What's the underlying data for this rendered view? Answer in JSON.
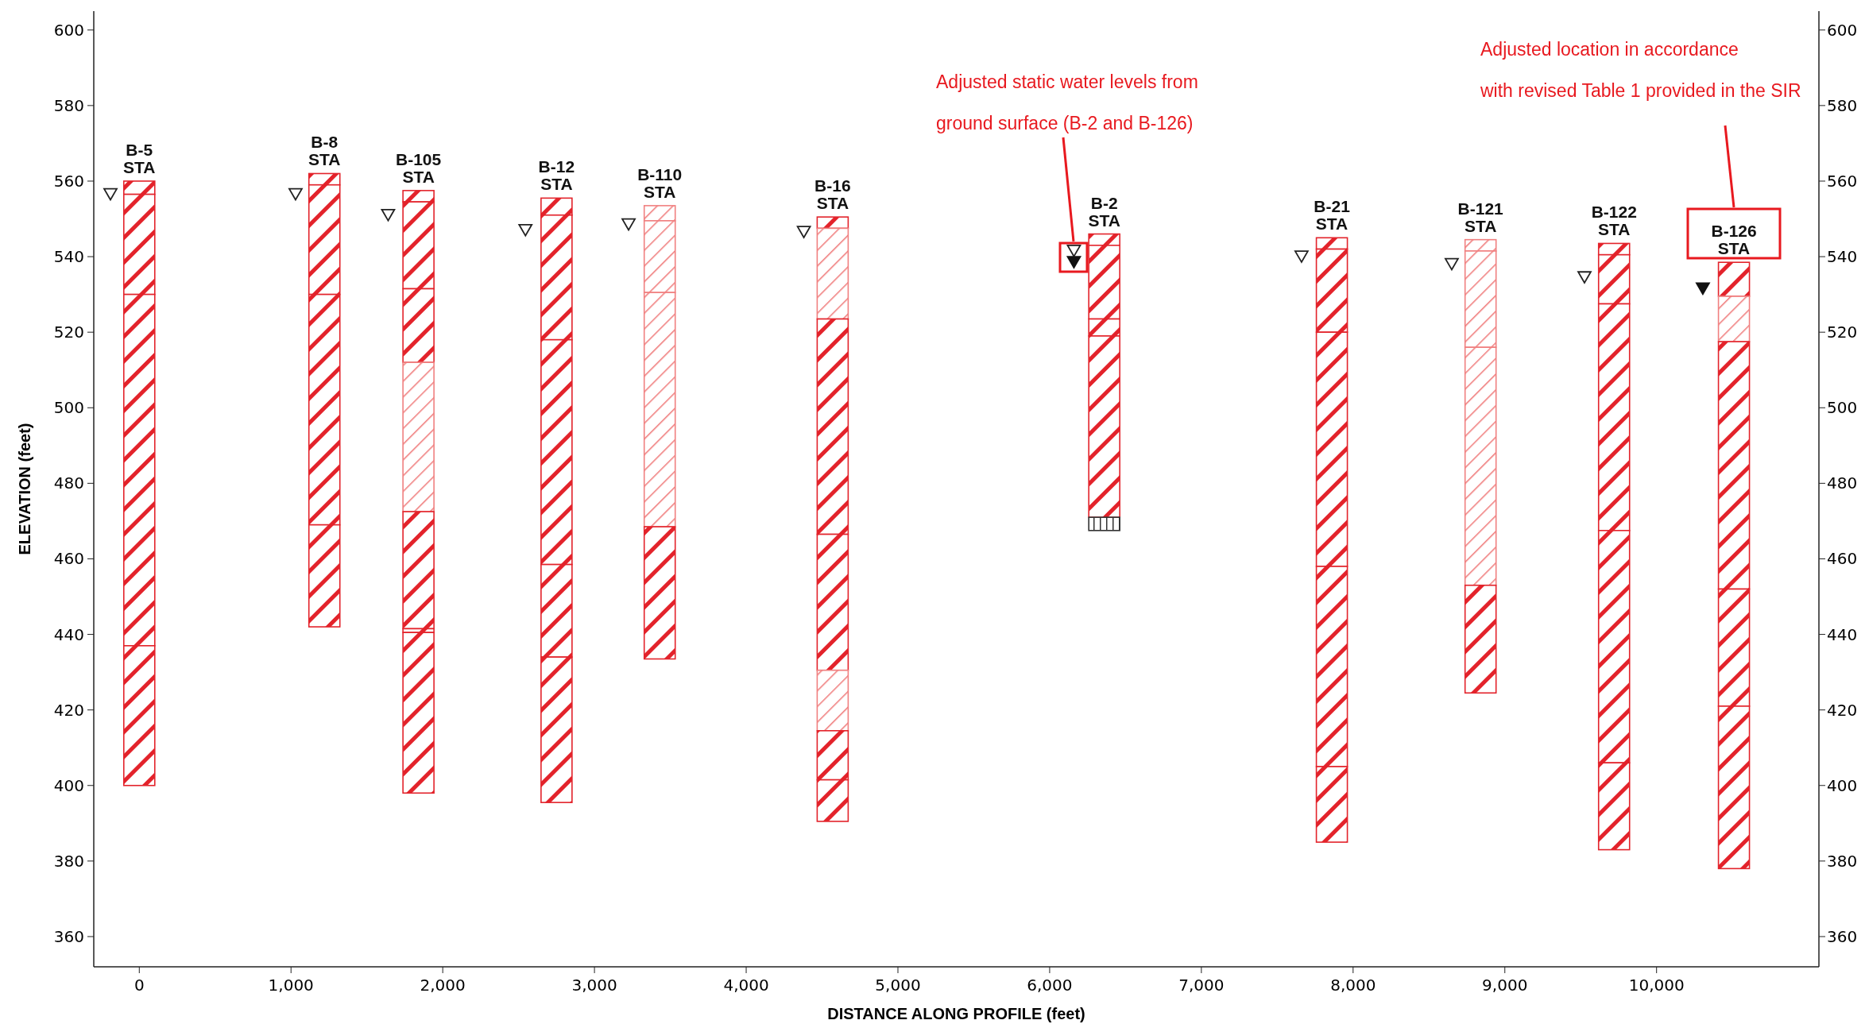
{
  "chart_data": {
    "type": "bar",
    "xlabel": "DISTANCE ALONG PROFILE (feet)",
    "ylabel": "ELEVATION (feet)",
    "xlim": [
      -300,
      11070
    ],
    "ylim": [
      352,
      605
    ],
    "y2lim": [
      352,
      605
    ],
    "xticks": [
      0,
      {
        "value": 1000,
        "label": "1,000"
      },
      {
        "value": 2000,
        "label": "2,000"
      },
      {
        "value": 3000,
        "label": "3,000"
      },
      {
        "value": 4000,
        "label": "4,000"
      },
      {
        "value": 5000,
        "label": "5,000"
      },
      {
        "value": 6000,
        "label": "6,000"
      },
      {
        "value": 7000,
        "label": "7,000"
      },
      {
        "value": 8000,
        "label": "8,000"
      },
      {
        "value": 9000,
        "label": "9,000"
      },
      {
        "value": 10000,
        "label": "10,000"
      }
    ],
    "yticks": [
      360,
      380,
      400,
      420,
      440,
      460,
      480,
      500,
      520,
      540,
      560,
      580,
      600
    ],
    "y2ticks": [
      360,
      380,
      400,
      420,
      440,
      460,
      480,
      500,
      520,
      540,
      560,
      580,
      600
    ],
    "grid": false,
    "series": [
      {
        "x": [
          0,
          1220,
          1840,
          2750,
          3430,
          4570,
          6360,
          7860,
          8840,
          9720,
          10510
        ],
        "base": [
          556.5,
          559,
          554.5,
          551,
          549.5,
          547.5,
          543,
          542,
          541.5,
          540.5,
          529.5
        ],
        "values": [
          3.5,
          3,
          3,
          4.5,
          4,
          3,
          3,
          3,
          3,
          3,
          9
        ],
        "colors": [
          "#e3232b",
          "#e3232b",
          "#e3232b",
          "#e3232b",
          "#f08080",
          "#e3232b",
          "#e3232b",
          "#e3232b",
          "#f08080",
          "#e3232b",
          "#e3232b"
        ]
      },
      {
        "x": [
          0,
          1220,
          1840,
          2750,
          3430,
          4570,
          6360,
          7860,
          8840,
          9720,
          10510
        ],
        "base": [
          530,
          530,
          531.5,
          518,
          530.5,
          523.5,
          523.5,
          520,
          516,
          527.5,
          517.5
        ],
        "values": [
          26.5,
          29,
          23,
          33,
          19,
          24,
          19.5,
          22,
          25.5,
          13,
          12
        ],
        "colors": [
          "#e3232b",
          "#e3232b",
          "#e3232b",
          "#e3232b",
          "#f08080",
          "#f08080",
          "#e3232b",
          "#e3232b",
          "#f08080",
          "#e3232b",
          "#f08080"
        ]
      },
      {
        "x": [
          0,
          1220,
          1840,
          2750,
          3430,
          4570,
          6360,
          7860,
          8840,
          9720,
          10510
        ],
        "base": [
          437,
          469,
          512,
          458.5,
          468.5,
          466.5,
          519,
          458,
          453,
          467.5,
          452
        ],
        "values": [
          93,
          61,
          19.5,
          59.5,
          62,
          57,
          4.5,
          62,
          63,
          60,
          65.5
        ],
        "colors": [
          "#e3232b",
          "#e3232b",
          "#e3232b",
          "#e3232b",
          "#f08080",
          "#e3232b",
          "#e3232b",
          "#e3232b",
          "#f08080",
          "#e3232b",
          "#e3232b"
        ]
      },
      {
        "x": [
          0,
          1220,
          1840,
          2750,
          3430,
          4570,
          6360,
          7860,
          8840,
          9720,
          10510
        ],
        "base": [
          400,
          442,
          472.5,
          434,
          433.5,
          430.5,
          471,
          405,
          424.5,
          406,
          421
        ],
        "values": [
          37,
          27,
          39.5,
          24.5,
          35,
          36,
          48,
          53,
          28.5,
          61.5,
          31
        ],
        "colors": [
          "#e3232b",
          "#e3232b",
          "#f08080",
          "#e3232b",
          "#e3232b",
          "#e3232b",
          "#e3232b",
          "#e3232b",
          "#e3232b",
          "#e3232b",
          "#e3232b"
        ]
      },
      {
        "x": [
          1840,
          2750,
          4570,
          6360,
          7860,
          9720,
          10510
        ],
        "base": [
          441.5,
          395.5,
          414.5,
          467.5,
          385,
          383,
          378
        ],
        "values": [
          31,
          38.5,
          16,
          3.5,
          20,
          23,
          43
        ],
        "colors": [
          "#e3232b",
          "#e3232b",
          "#f08080",
          "#333333",
          "#e3232b",
          "#e3232b",
          "#e3232b"
        ]
      },
      {
        "x": [
          1840,
          4570
        ],
        "base": [
          440.5,
          401.5
        ],
        "values": [
          1,
          13
        ],
        "colors": [
          "#e3232b",
          "#e3232b"
        ]
      },
      {
        "x": [
          1840,
          4570
        ],
        "base": [
          398,
          390.5
        ],
        "values": [
          42.5,
          11
        ],
        "colors": [
          "#e3232b",
          "#e3232b"
        ]
      },
      {
        "type": "scatter",
        "marker": "triangle",
        "color": "#222222",
        "x": [
          -190,
          1030,
          1640,
          2545,
          3225,
          4380,
          6160,
          7660,
          8650,
          9525
        ],
        "values": [
          557,
          557,
          551.5,
          547.5,
          549,
          547,
          542,
          540.5,
          538.5,
          535
        ]
      },
      {
        "type": "scatter",
        "marker": "triangle",
        "color": "#111111",
        "x": [
          6160,
          10305
        ],
        "values": [
          539,
          532
        ]
      }
    ],
    "annotations": [
      {
        "text": "B-5\nSTA",
        "x": 0,
        "y": 560
      },
      {
        "text": "B-8\nSTA",
        "x": 1220,
        "y": 562
      },
      {
        "text": "B-105\nSTA",
        "x": 1840,
        "y": 557.5
      },
      {
        "text": "B-12\nSTA",
        "x": 2750,
        "y": 555.5
      },
      {
        "text": "B-110\nSTA",
        "x": 3430,
        "y": 553.5
      },
      {
        "text": "B-16\nSTA",
        "x": 4570,
        "y": 550.5
      },
      {
        "text": "B-2\nSTA",
        "x": 6360,
        "y": 546
      },
      {
        "text": "B-21\nSTA",
        "x": 7860,
        "y": 545
      },
      {
        "text": "B-121\nSTA",
        "x": 8840,
        "y": 544.5
      },
      {
        "text": "B-122\nSTA",
        "x": 9720,
        "y": 543.5
      },
      {
        "text": "B-126\nSTA",
        "x": 10510,
        "y": 538.5
      },
      "Adjusted static water levels from\nground surface (B-2 and B-126)",
      "Adjusted location in accordance\nwith revised Table 1 provided in the SIR"
    ]
  }
}
